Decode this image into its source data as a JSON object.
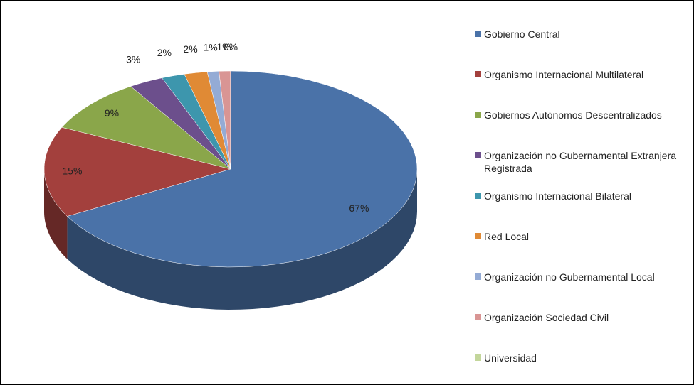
{
  "chart_data": {
    "type": "pie",
    "categories": [
      "Gobierno Central",
      "Organismo Internacional Multilateral",
      "Gobiernos Autónomos Descentralizados",
      "Organización no Gubernamental Extranjera Registrada",
      "Organismo Internacional Bilateral",
      "Red Local",
      "Organización no Gubernamental Local",
      "Organización Sociedad Civil",
      "Universidad"
    ],
    "values": [
      67,
      15,
      9,
      3,
      2,
      2,
      1,
      1,
      0
    ],
    "value_labels": [
      "67%",
      "15%",
      "9%",
      "3%",
      "2%",
      "2%",
      "1%",
      "1%",
      "0%"
    ],
    "colors": [
      "#4a72a8",
      "#a3403d",
      "#8aa64a",
      "#6c4f8c",
      "#3d96ad",
      "#e08a35",
      "#94abd5",
      "#d99594",
      "#c3d69b"
    ],
    "legend": "right"
  }
}
